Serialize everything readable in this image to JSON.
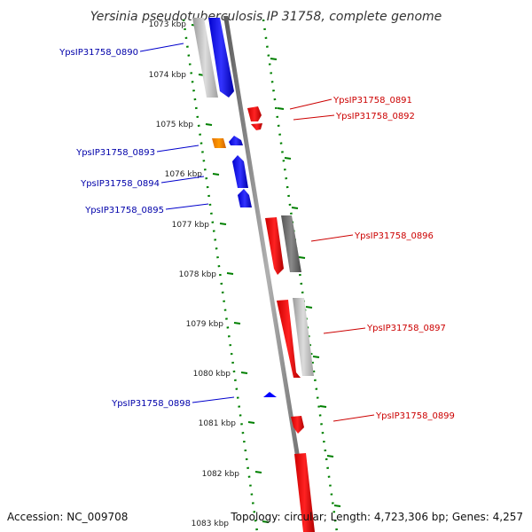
{
  "title": "Yersinia pseudotuberculosis IP 31758, complete genome",
  "footer": {
    "accession": "Accession: NC_009708",
    "topology": "Topology: circular; Length: 4,723,306 bp; Genes: 4,257"
  },
  "colors": {
    "forward_gene": "#ff0000",
    "reverse_gene": "#0000ff",
    "other_gene": "#ff8c00",
    "tick": "#008000",
    "backbone": "#808080",
    "forward_label": "#cc0000",
    "reverse_label": "#0000aa"
  },
  "axis": {
    "ticks": [
      "1073 kbp",
      "1074 kbp",
      "1075 kbp",
      "1076 kbp",
      "1077 kbp",
      "1078 kbp",
      "1079 kbp",
      "1080 kbp",
      "1081 kbp",
      "1082 kbp",
      "1083 kbp"
    ]
  },
  "gene_labels": {
    "reverse": [
      "YpsIP31758_0890",
      "YpsIP31758_0893",
      "YpsIP31758_0894",
      "YpsIP31758_0895",
      "YpsIP31758_0898"
    ],
    "forward": [
      "YpsIP31758_0891",
      "YpsIP31758_0892",
      "YpsIP31758_0896",
      "YpsIP31758_0897",
      "YpsIP31758_0899"
    ]
  }
}
